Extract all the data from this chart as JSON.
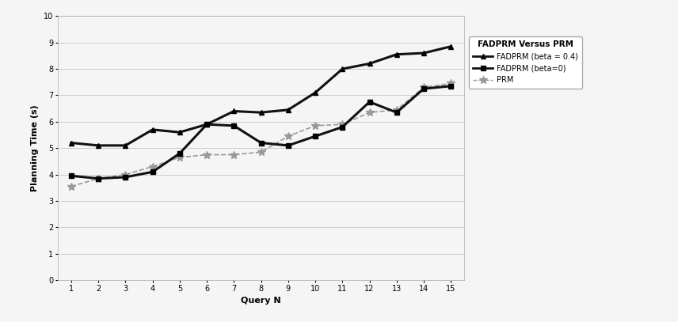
{
  "title": "FADPRM Versus PRM",
  "xlabel": "Query N",
  "ylabel": "Planning Time (s)",
  "x": [
    1,
    2,
    3,
    4,
    5,
    6,
    7,
    8,
    9,
    10,
    11,
    12,
    13,
    14,
    15
  ],
  "fadprm_04": [
    5.2,
    5.1,
    5.1,
    5.7,
    5.6,
    5.9,
    6.4,
    6.35,
    6.45,
    7.1,
    8.0,
    8.2,
    8.55,
    8.6,
    8.85
  ],
  "fadprm_0": [
    3.95,
    3.85,
    3.9,
    4.1,
    4.8,
    5.9,
    5.85,
    5.2,
    5.1,
    5.45,
    5.8,
    6.75,
    6.35,
    7.25,
    7.35
  ],
  "prm": [
    3.55,
    3.85,
    4.0,
    4.3,
    4.65,
    4.75,
    4.75,
    4.85,
    5.45,
    5.85,
    5.9,
    6.35,
    6.45,
    7.3,
    7.45
  ],
  "ylim": [
    0,
    10
  ],
  "xlim": [
    0.5,
    15.5
  ],
  "yticks": [
    0,
    1,
    2,
    3,
    4,
    5,
    6,
    7,
    8,
    9,
    10
  ],
  "xticks": [
    1,
    2,
    3,
    4,
    5,
    6,
    7,
    8,
    9,
    10,
    11,
    12,
    13,
    14,
    15
  ],
  "fadprm04_color": "#111111",
  "fadprm0_color": "#111111",
  "prm_color": "#999999",
  "grid_color": "#bbbbbb",
  "bg_color": "#f5f5f5",
  "legend_label1": "FADPRM (beta = 0.4)",
  "legend_label2": "FADPRM (beta=0)",
  "legend_label3": "PRM"
}
